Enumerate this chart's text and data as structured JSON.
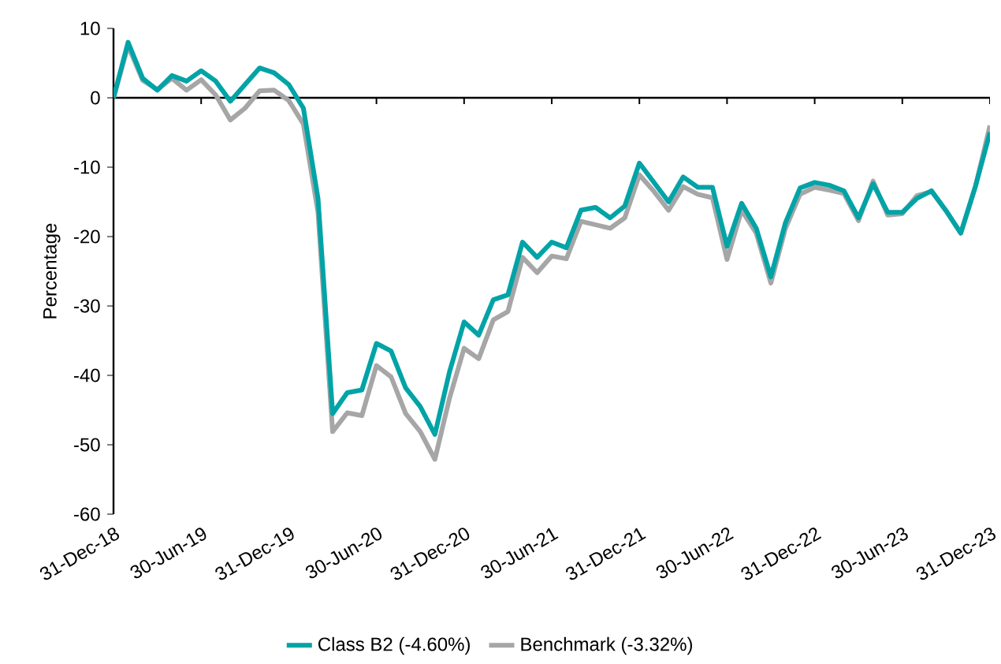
{
  "chart_data": {
    "type": "line",
    "ylabel": "Percentage",
    "legend": "bottom",
    "line_style": "solid",
    "x": [
      "2018-12",
      "2019-01",
      "2019-02",
      "2019-03",
      "2019-04",
      "2019-05",
      "2019-06",
      "2019-07",
      "2019-08",
      "2019-09",
      "2019-10",
      "2019-11",
      "2019-12",
      "2020-01",
      "2020-02",
      "2020-03",
      "2020-04",
      "2020-05",
      "2020-06",
      "2020-07",
      "2020-08",
      "2020-09",
      "2020-10",
      "2020-11",
      "2020-12",
      "2021-01",
      "2021-02",
      "2021-03",
      "2021-04",
      "2021-05",
      "2021-06",
      "2021-07",
      "2021-08",
      "2021-09",
      "2021-10",
      "2021-11",
      "2021-12",
      "2022-01",
      "2022-02",
      "2022-03",
      "2022-04",
      "2022-05",
      "2022-06",
      "2022-07",
      "2022-08",
      "2022-09",
      "2022-10",
      "2022-11",
      "2022-12",
      "2023-01",
      "2023-02",
      "2023-03",
      "2023-04",
      "2023-05",
      "2023-06",
      "2023-07",
      "2023-08",
      "2023-09",
      "2023-10",
      "2023-11",
      "2023-12"
    ],
    "series": [
      {
        "name": "Class B2 (-4.60%)",
        "color": "#00a3a6",
        "values": [
          0,
          8.0,
          2.8,
          1.1,
          3.2,
          2.4,
          3.9,
          2.4,
          -0.5,
          1.9,
          4.3,
          3.6,
          1.9,
          -1.5,
          -14.5,
          -45.5,
          -42.5,
          -42.1,
          -35.4,
          -36.5,
          -41.8,
          -44.5,
          -48.5,
          -39.5,
          -32.3,
          -34.2,
          -29.1,
          -28.4,
          -20.8,
          -23.0,
          -20.8,
          -21.6,
          -16.2,
          -15.8,
          -17.3,
          -15.6,
          -9.4,
          -12.2,
          -15.0,
          -11.4,
          -12.9,
          -12.9,
          -21.4,
          -15.2,
          -18.8,
          -25.8,
          -18.0,
          -13.0,
          -12.2,
          -12.6,
          -13.4,
          -17.3,
          -12.4,
          -16.5,
          -16.5,
          -14.5,
          -13.4,
          -16.3,
          -19.5,
          -12.8,
          -5.0
        ]
      },
      {
        "name": "Benchmark (-3.32%)",
        "color": "#a6a6a6",
        "values": [
          0,
          7.5,
          2.5,
          1.2,
          2.8,
          1.1,
          2.6,
          0.4,
          -3.2,
          -1.5,
          1.0,
          1.1,
          -0.4,
          -3.8,
          -16.5,
          -48.1,
          -45.4,
          -45.8,
          -38.6,
          -40.2,
          -45.5,
          -48.1,
          -52.1,
          -43.3,
          -36.1,
          -37.6,
          -32.0,
          -30.8,
          -23.0,
          -25.2,
          -22.8,
          -23.2,
          -17.8,
          -18.3,
          -18.8,
          -17.3,
          -11.1,
          -13.5,
          -16.2,
          -12.8,
          -13.9,
          -14.4,
          -23.3,
          -16.2,
          -19.5,
          -26.7,
          -18.8,
          -13.9,
          -12.9,
          -13.3,
          -13.8,
          -17.7,
          -12.0,
          -16.9,
          -16.7,
          -14.1,
          -13.5,
          -16.3,
          -19.5,
          -12.8,
          -4.0
        ]
      }
    ],
    "xlim": [
      "2018-12",
      "2023-12"
    ],
    "xticks": [
      {
        "value": "2018-12",
        "label": "31-Dec-18"
      },
      {
        "value": "2019-06",
        "label": "30-Jun-19"
      },
      {
        "value": "2019-12",
        "label": "31-Dec-19"
      },
      {
        "value": "2020-06",
        "label": "30-Jun-20"
      },
      {
        "value": "2020-12",
        "label": "31-Dec-20"
      },
      {
        "value": "2021-06",
        "label": "30-Jun-21"
      },
      {
        "value": "2021-12",
        "label": "31-Dec-21"
      },
      {
        "value": "2022-06",
        "label": "30-Jun-22"
      },
      {
        "value": "2022-12",
        "label": "31-Dec-22"
      },
      {
        "value": "2023-06",
        "label": "30-Jun-23"
      },
      {
        "value": "2023-12",
        "label": "31-Dec-23"
      }
    ],
    "ylim": [
      -60,
      10
    ],
    "yticks": [
      -60,
      -50,
      -40,
      -30,
      -20,
      -10,
      0,
      10
    ]
  }
}
